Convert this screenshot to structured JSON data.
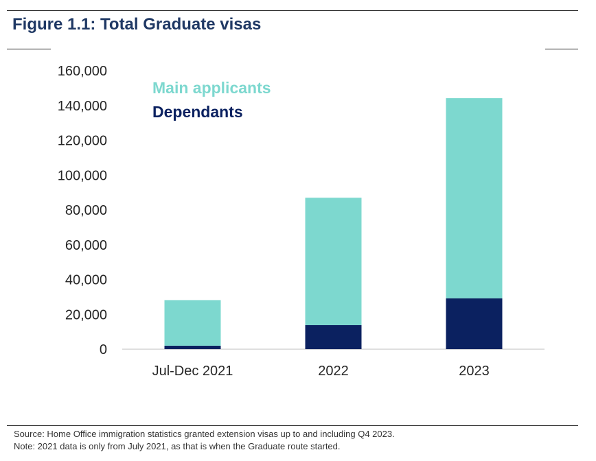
{
  "figure": {
    "title": "Figure 1.1: Total Graduate visas"
  },
  "chart_data": {
    "type": "bar",
    "stacked": true,
    "categories": [
      "Jul-Dec 2021",
      "2022",
      "2023"
    ],
    "series": [
      {
        "name": "Dependants",
        "values": [
          2000,
          13800,
          29200
        ],
        "color": "#0b2160"
      },
      {
        "name": "Main applicants",
        "values": [
          26200,
          73200,
          115000
        ],
        "color": "#7dd8cf"
      }
    ],
    "ylim": [
      0,
      160000
    ],
    "yticks": [
      0,
      20000,
      40000,
      60000,
      80000,
      100000,
      120000,
      140000,
      160000
    ],
    "ytick_labels": [
      "0",
      "20,000",
      "40,000",
      "60,000",
      "80,000",
      "100,000",
      "120,000",
      "140,000",
      "160,000"
    ],
    "legend": [
      {
        "label": "Main applicants",
        "color": "#7dd8cf"
      },
      {
        "label": "Dependants",
        "color": "#0b2160"
      }
    ],
    "legend_position": "top-left",
    "grid": false,
    "xlabel": "",
    "ylabel": ""
  },
  "notes": {
    "source": "Source: Home Office immigration statistics granted extension visas up to and including Q4 2023.",
    "note": "Note: 2021 data is only from July 2021, as that is when the Graduate route started."
  }
}
